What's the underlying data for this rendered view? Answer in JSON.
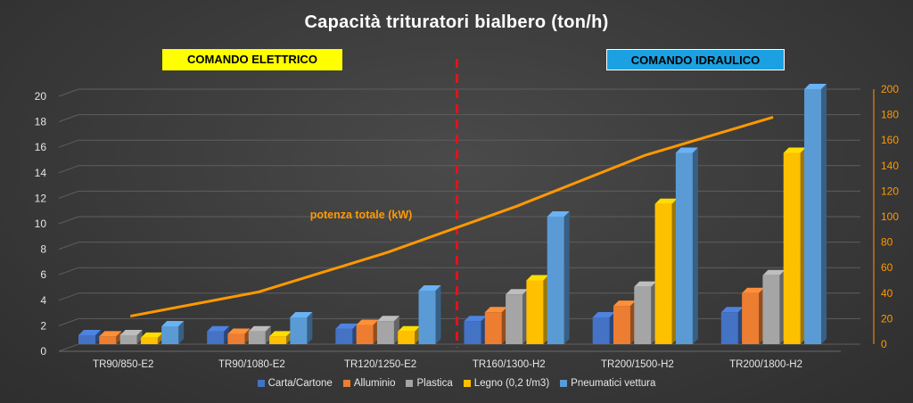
{
  "chart_data": {
    "type": "bar",
    "title": "Capacità trituratori bialbero (ton/h)",
    "categories": [
      "TR90/850-E2",
      "TR90/1080-E2",
      "TR120/1250-E2",
      "TR160/1300-H2",
      "TR200/1500-H2",
      "TR200/1800-H2"
    ],
    "series": [
      {
        "name": "Carta/Cartone",
        "color": "#4472c4",
        "values": [
          0.7,
          1.0,
          1.2,
          1.8,
          2.1,
          2.5
        ]
      },
      {
        "name": "Alluminio",
        "color": "#ed7d31",
        "values": [
          0.6,
          0.8,
          1.5,
          2.5,
          3.0,
          4.0
        ]
      },
      {
        "name": "Plastica",
        "color": "#a5a5a5",
        "values": [
          0.7,
          1.0,
          1.8,
          3.9,
          4.5,
          5.4
        ]
      },
      {
        "name": "Legno (0,2 t/m3)",
        "color": "#ffc000",
        "values": [
          0.5,
          0.6,
          1.0,
          5.0,
          11.0,
          15.0
        ]
      },
      {
        "name": "Pneumatici vettura",
        "color": "#5b9bd5",
        "values": [
          1.4,
          2.1,
          4.2,
          10.0,
          15.0,
          20.0
        ]
      }
    ],
    "line_series": {
      "name": "potenza totale (kW)",
      "color": "#ff9900",
      "axis": "right",
      "values": [
        22,
        41,
        72,
        108,
        148,
        178
      ]
    },
    "y_left": {
      "ylim": [
        0,
        20
      ],
      "ticks": [
        0,
        2,
        4,
        6,
        8,
        10,
        12,
        14,
        16,
        18,
        20
      ]
    },
    "y_right": {
      "ylim": [
        0,
        200
      ],
      "ticks": [
        0,
        20,
        40,
        60,
        80,
        100,
        120,
        140,
        160,
        180,
        200
      ]
    },
    "grid": true,
    "legend": "bottom",
    "annotations": {
      "elettrico": "COMANDO ELETTRICO",
      "idraulico": "COMANDO IDRAULICO"
    }
  }
}
